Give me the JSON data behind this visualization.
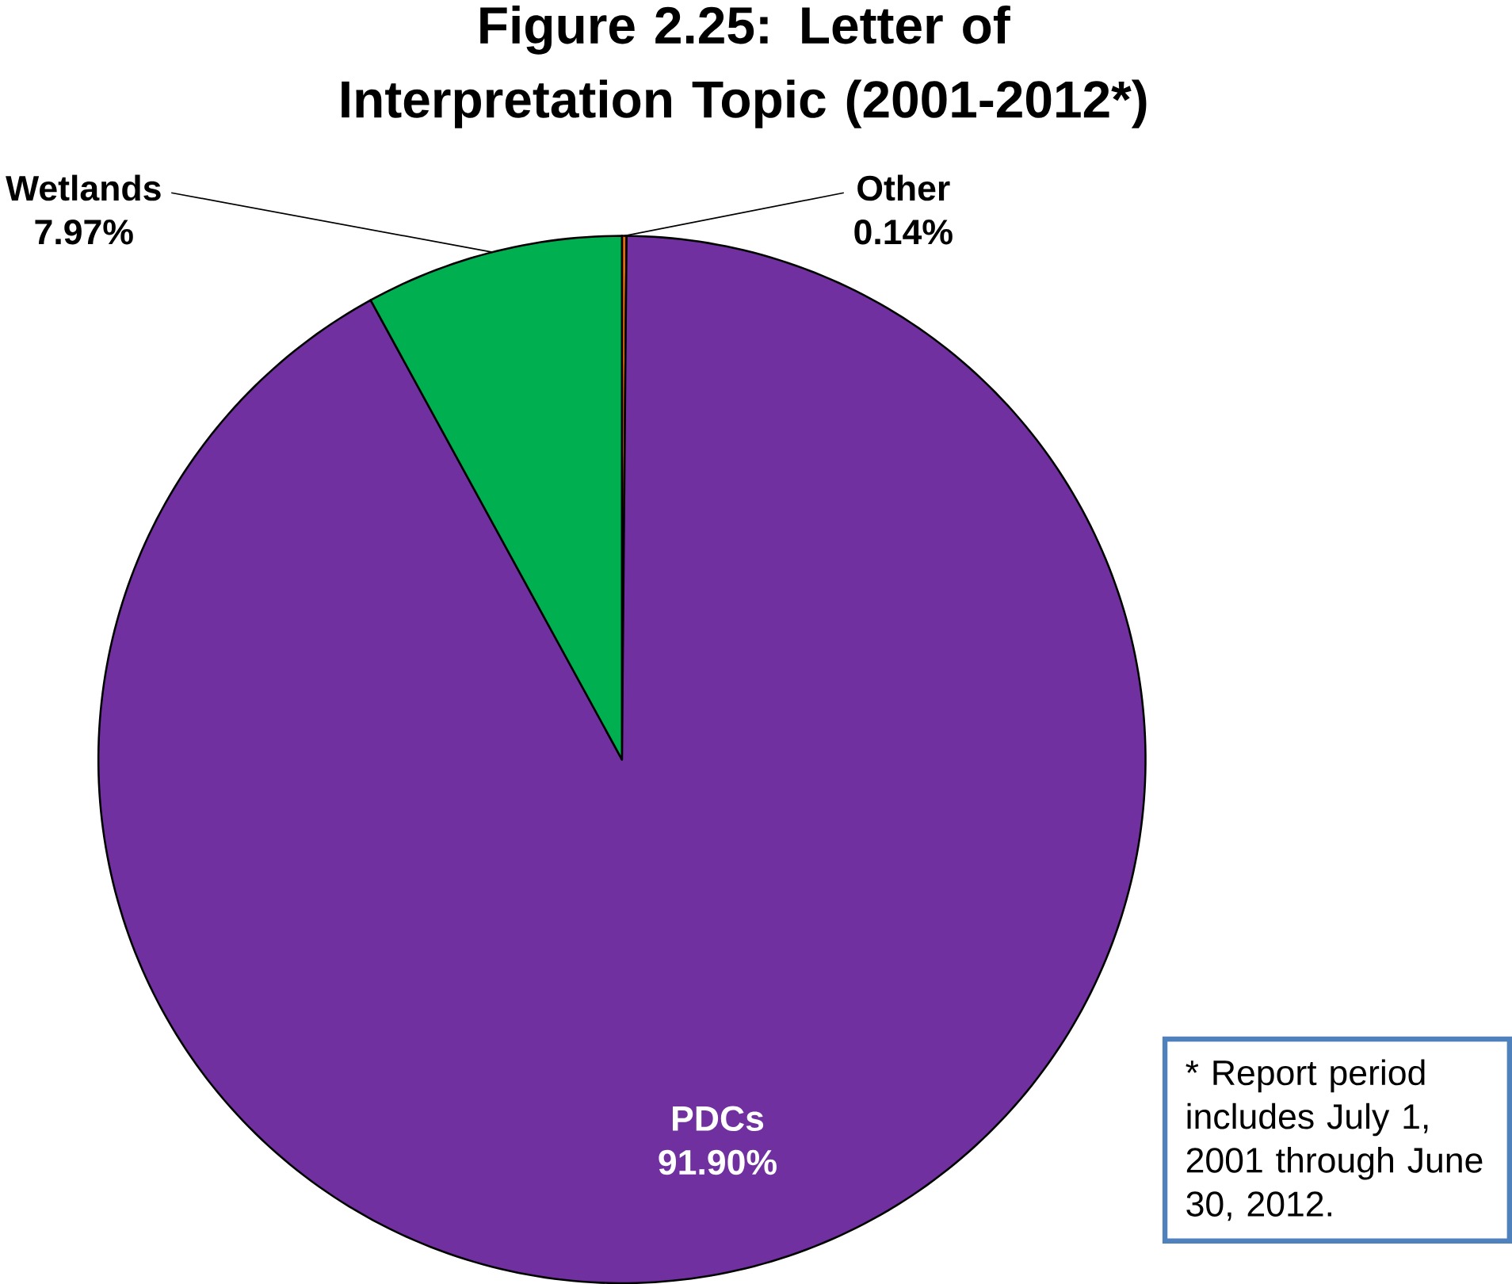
{
  "chart_data": {
    "type": "pie",
    "title": "Figure 2.25: Letter of Interpretation Topic (2001-2012*)",
    "categories": [
      "Other",
      "PDCs",
      "Wetlands"
    ],
    "values": [
      0.14,
      91.9,
      7.97
    ],
    "colors": [
      "#e46c0a",
      "#7030a0",
      "#00b050"
    ],
    "value_labels": [
      "0.14%",
      "91.90%",
      "7.97%"
    ],
    "annotations": [
      "* Report period includes July 1, 2001 through June 30, 2012."
    ]
  }
}
